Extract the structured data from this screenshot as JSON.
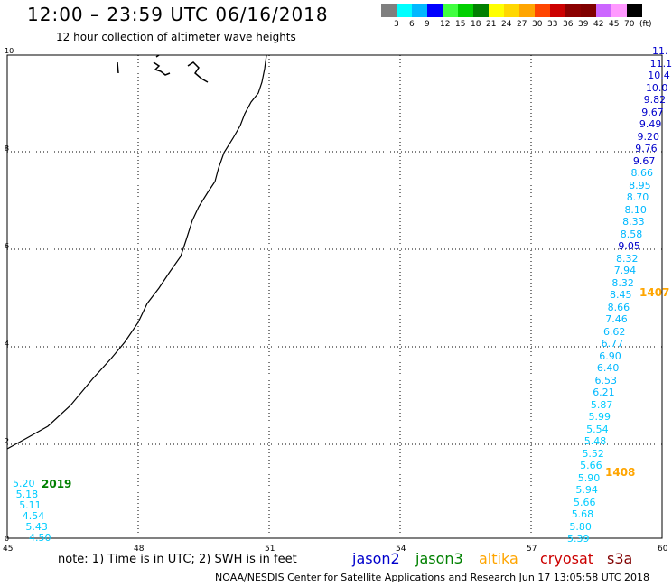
{
  "header": {
    "title": "12:00 – 23:59 UTC 06/16/2018",
    "subtitle": "12 hour collection of altimeter wave heights"
  },
  "legend": {
    "swatches": [
      "#7f7f7f",
      "#00ffff",
      "#00b8ff",
      "#0000ff",
      "#3fff3f",
      "#00d000",
      "#008000",
      "#ffff00",
      "#ffd700",
      "#ffa500",
      "#ff4500",
      "#cc0000",
      "#8b0000",
      "#800000",
      "#cc66ff",
      "#ff99ff",
      "#000000"
    ],
    "labels": [
      "3",
      "6",
      "9",
      "12",
      "15",
      "18",
      "21",
      "24",
      "27",
      "30",
      "33",
      "36",
      "39",
      "42",
      "45",
      "70",
      "(ft)"
    ]
  },
  "axes": {
    "x_ticks": [
      "45",
      "48",
      "51",
      "54",
      "57",
      "60"
    ],
    "y_ticks": [
      "10",
      "8",
      "6",
      "4",
      "2",
      "0"
    ]
  },
  "missions": [
    {
      "name": "jason2",
      "color": "#0000cc"
    },
    {
      "name": "jason3",
      "color": "#008000"
    },
    {
      "name": "altika",
      "color": "#ffa500"
    },
    {
      "name": "cryosat",
      "color": "#cc0000"
    },
    {
      "name": "s3a",
      "color": "#800000"
    }
  ],
  "note": "note: 1) Time is in UTC; 2) SWH is in feet",
  "credit": "NOAA/NESDIS Center for Satellite Applications and Research   Jun 17 13:05:58 UTC 2018",
  "passes": [
    {
      "label": "1407",
      "color": "#ffa500"
    },
    {
      "label": "1408",
      "color": "#ffa500"
    },
    {
      "label": "2019",
      "color": "#008000"
    }
  ],
  "tracks": {
    "east": [
      {
        "v": "11.",
        "c": "#0000cc"
      },
      {
        "v": "11.1",
        "c": "#0000cc"
      },
      {
        "v": "10.4",
        "c": "#0000cc"
      },
      {
        "v": "10.0",
        "c": "#0000cc"
      },
      {
        "v": "9.82",
        "c": "#0000cc"
      },
      {
        "v": "9.67",
        "c": "#0000cc"
      },
      {
        "v": "9.49",
        "c": "#0000cc"
      },
      {
        "v": "9.20",
        "c": "#0000cc"
      },
      {
        "v": "9.76",
        "c": "#0000cc"
      },
      {
        "v": "9.67",
        "c": "#0000cc"
      },
      {
        "v": "8.66",
        "c": "#00b8ff"
      },
      {
        "v": "8.95",
        "c": "#00b8ff"
      },
      {
        "v": "8.70",
        "c": "#00b8ff"
      },
      {
        "v": "8.10",
        "c": "#00b8ff"
      },
      {
        "v": "8.33",
        "c": "#00b8ff"
      },
      {
        "v": "8.58",
        "c": "#00b8ff"
      },
      {
        "v": "9.05",
        "c": "#0000cc"
      },
      {
        "v": "8.32",
        "c": "#00b8ff"
      },
      {
        "v": "7.94",
        "c": "#00b8ff"
      },
      {
        "v": "8.32",
        "c": "#00b8ff"
      },
      {
        "v": "8.45",
        "c": "#00b8ff"
      },
      {
        "v": "8.66",
        "c": "#00b8ff"
      },
      {
        "v": "7.46",
        "c": "#00b8ff"
      },
      {
        "v": "6.62",
        "c": "#00b8ff"
      },
      {
        "v": "6.77",
        "c": "#00b8ff"
      },
      {
        "v": "6.90",
        "c": "#00b8ff"
      },
      {
        "v": "6.40",
        "c": "#00b8ff"
      },
      {
        "v": "6.53",
        "c": "#00b8ff"
      },
      {
        "v": "6.21",
        "c": "#00b8ff"
      },
      {
        "v": "5.87",
        "c": "#00ccff"
      },
      {
        "v": "5.99",
        "c": "#00ccff"
      },
      {
        "v": "5.54",
        "c": "#00ccff"
      },
      {
        "v": "5.48",
        "c": "#00ccff"
      },
      {
        "v": "5.52",
        "c": "#00ccff"
      },
      {
        "v": "5.66",
        "c": "#00ccff"
      },
      {
        "v": "5.90",
        "c": "#00ccff"
      },
      {
        "v": "5.94",
        "c": "#00ccff"
      },
      {
        "v": "5.66",
        "c": "#00ccff"
      },
      {
        "v": "5.68",
        "c": "#00ccff"
      },
      {
        "v": "5.80",
        "c": "#00ccff"
      },
      {
        "v": "5.39",
        "c": "#00ccff"
      }
    ],
    "west": [
      {
        "v": "5.20",
        "c": "#00ccff"
      },
      {
        "v": "5.18",
        "c": "#00ccff"
      },
      {
        "v": "5.11",
        "c": "#00ccff"
      },
      {
        "v": "4.54",
        "c": "#00ccff"
      },
      {
        "v": "5.43",
        "c": "#00ccff"
      },
      {
        "v": "4.50",
        "c": "#00ccff"
      }
    ]
  }
}
